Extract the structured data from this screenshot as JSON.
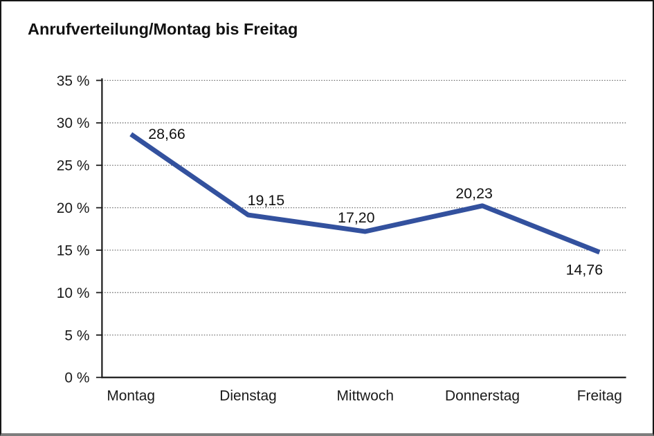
{
  "chart_data": {
    "type": "line",
    "title": "Anrufverteilung/Montag bis Freitag",
    "categories": [
      "Montag",
      "Dienstag",
      "Mittwoch",
      "Donnerstag",
      "Freitag"
    ],
    "series": [
      {
        "name": "Anrufverteilung",
        "values": [
          28.66,
          19.15,
          17.2,
          20.23,
          14.76
        ],
        "value_labels": [
          "28,66",
          "19,15",
          "17,20",
          "20,23",
          "14,76"
        ]
      }
    ],
    "xlabel": "",
    "ylabel": "",
    "ylim": [
      0,
      35
    ],
    "ytick_step": 5,
    "ytick_labels": [
      "0 %",
      "5 %",
      "10 %",
      "15 %",
      "20 %",
      "25 %",
      "30 %",
      "35 %"
    ],
    "grid": "horizontal-dotted",
    "legend": "none",
    "colors": {
      "line": "#33519E",
      "axis": "#1a1a1a",
      "gridline": "#6e6e6e",
      "text": "#1a1a1a",
      "background": "#ffffff",
      "frame_border": "#161616",
      "frame_bottom_border": "#7d7d7d"
    }
  }
}
